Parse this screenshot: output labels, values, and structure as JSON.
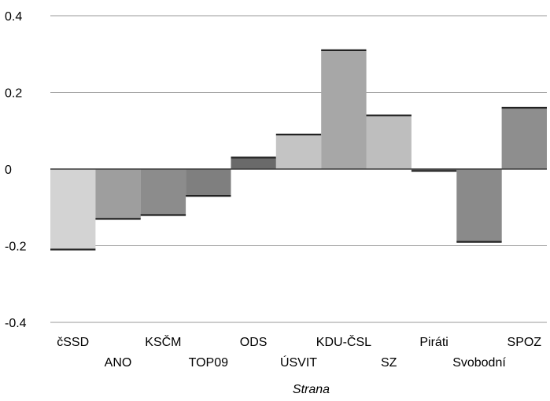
{
  "chart_data": {
    "type": "bar",
    "title": "",
    "xlabel": "Strana",
    "ylabel": "",
    "ylim": [
      -0.4,
      0.4
    ],
    "yticks": [
      "0.4",
      "0.2",
      "0",
      "-0.2",
      "-0.4"
    ],
    "ytick_values": [
      0.4,
      0.2,
      0,
      -0.2,
      -0.4
    ],
    "grid": true,
    "legend": "none",
    "categories": [
      "čSSD",
      "ANO",
      "KSČM",
      "TOP09",
      "ODS",
      "ÚSVIT",
      "KDU-ČSL",
      "SZ",
      "Piráti",
      "Svobodní",
      "SPOZ"
    ],
    "values": [
      -0.21,
      -0.13,
      -0.12,
      -0.07,
      0.03,
      0.09,
      0.31,
      0.14,
      -0.005,
      -0.19,
      0.16
    ],
    "colors": [
      "#d3d3d3",
      "#9e9e9e",
      "#8c8c8c",
      "#7f7f7f",
      "#6a6a6a",
      "#c4c4c4",
      "#a7a7a7",
      "#bebebe",
      "#7a7a7a",
      "#8a8a8a",
      "#8e8e8e"
    ]
  }
}
